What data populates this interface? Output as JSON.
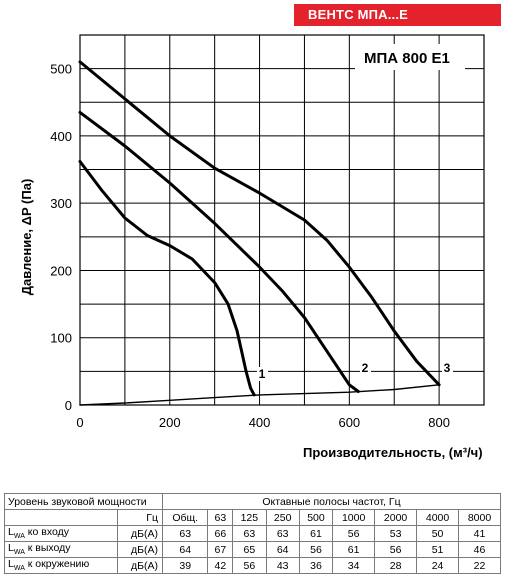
{
  "badge": "ВЕНТС МПА...Е",
  "chart_data": {
    "type": "line",
    "title": "МПА 800 Е1",
    "xlabel": "Производительность, (м³/ч)",
    "ylabel": "Давление, ΔP (Па)",
    "xlim": [
      0,
      900
    ],
    "ylim": [
      0,
      550
    ],
    "xticks": [
      0,
      200,
      400,
      600,
      800
    ],
    "yticks": [
      0,
      100,
      200,
      300,
      400,
      500
    ],
    "grid": true,
    "series": [
      {
        "name": "1",
        "x": [
          0,
          50,
          100,
          150,
          200,
          250,
          300,
          330,
          350,
          360,
          370,
          380,
          388
        ],
        "y": [
          362,
          318,
          278,
          252,
          237,
          217,
          182,
          150,
          110,
          80,
          50,
          25,
          15
        ]
      },
      {
        "name": "2",
        "x": [
          0,
          100,
          200,
          300,
          400,
          450,
          500,
          550,
          600,
          620
        ],
        "y": [
          435,
          385,
          330,
          270,
          205,
          170,
          130,
          80,
          30,
          20
        ]
      },
      {
        "name": "3",
        "x": [
          0,
          100,
          200,
          300,
          400,
          500,
          550,
          600,
          650,
          700,
          750,
          800
        ],
        "y": [
          510,
          455,
          400,
          352,
          315,
          275,
          245,
          205,
          160,
          110,
          65,
          30
        ]
      },
      {
        "name": "system",
        "x": [
          0,
          100,
          200,
          300,
          400,
          500,
          600,
          700,
          800
        ],
        "y": [
          0,
          3,
          7,
          11,
          15,
          17,
          19,
          23,
          30
        ]
      }
    ]
  },
  "table": {
    "header1": {
      "title": "Уровень звуковой мощности",
      "bands_title": "Октавные полосы частот, Гц"
    },
    "header2": {
      "unit": "Гц",
      "total": "Общ.",
      "bands": [
        "63",
        "125",
        "250",
        "500",
        "1000",
        "2000",
        "4000",
        "8000"
      ]
    },
    "rows": [
      {
        "sub": "WA",
        "name": " ко входу",
        "unit": "дБ(А)",
        "values": [
          "63",
          "66",
          "63",
          "63",
          "61",
          "56",
          "53",
          "50",
          "41"
        ]
      },
      {
        "sub": "WA",
        "name": " к выходу",
        "unit": "дБ(А)",
        "values": [
          "64",
          "67",
          "65",
          "64",
          "56",
          "61",
          "56",
          "51",
          "46"
        ]
      },
      {
        "sub": "WA",
        "name": " к окружению",
        "unit": "дБ(А)",
        "values": [
          "39",
          "42",
          "56",
          "43",
          "36",
          "34",
          "28",
          "24",
          "22"
        ]
      }
    ]
  }
}
